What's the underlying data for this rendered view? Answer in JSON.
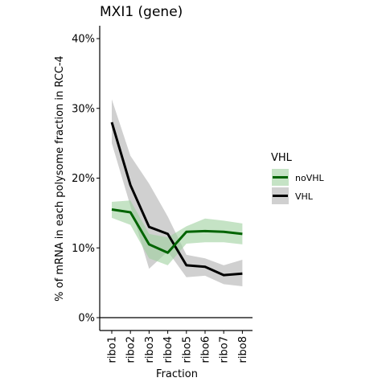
{
  "chart_data": {
    "type": "line",
    "title": "MXI1 (gene)",
    "xlabel": "Fraction",
    "ylabel": "% of mRNA in each polysome fraction in RCC-4",
    "categories": [
      "ribo1",
      "ribo2",
      "ribo3",
      "ribo4",
      "ribo5",
      "ribo6",
      "ribo7",
      "ribo8"
    ],
    "ylim": [
      0,
      42
    ],
    "yticks": [
      0,
      10,
      20,
      30,
      40
    ],
    "ytick_labels": [
      "0%",
      "10%",
      "20%",
      "30%",
      "40%"
    ],
    "hline": 0,
    "legend": {
      "title": "VHL",
      "position": "right"
    },
    "series": [
      {
        "name": "noVHL",
        "color": "#006400",
        "band_color": "#9fd19f",
        "values": [
          15.5,
          15.1,
          10.5,
          9.3,
          12.3,
          12.4,
          12.3,
          12.0
        ],
        "lower": [
          14.3,
          13.3,
          8.5,
          7.5,
          10.6,
          10.8,
          10.8,
          10.5
        ],
        "upper": [
          16.6,
          16.8,
          12.0,
          11.5,
          13.1,
          14.2,
          13.9,
          13.5
        ]
      },
      {
        "name": "VHL",
        "color": "#000000",
        "band_color": "#b0b0b0",
        "values": [
          28.0,
          19.0,
          13.0,
          12.0,
          7.5,
          7.3,
          6.1,
          6.3
        ],
        "lower": [
          25.0,
          16.0,
          7.0,
          9.5,
          5.8,
          6.0,
          4.8,
          4.5
        ],
        "upper": [
          31.3,
          23.2,
          19.2,
          14.5,
          9.0,
          8.5,
          7.5,
          8.3
        ]
      }
    ]
  }
}
